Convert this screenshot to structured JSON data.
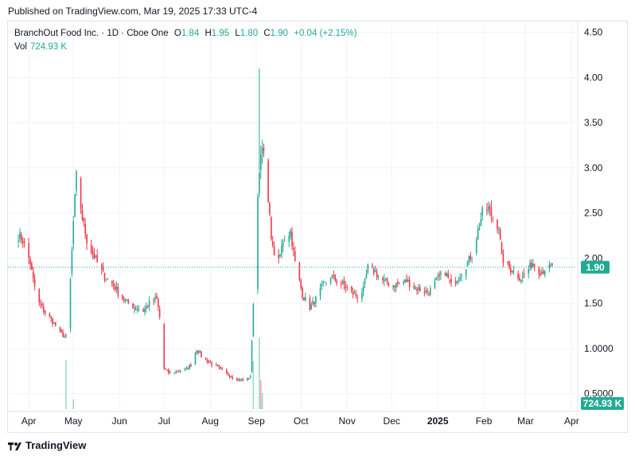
{
  "published_line": "Published on TradingView.com, Mar 19, 2025 17:33 UTC-4",
  "legend": {
    "symbol": "BranchOut Food Inc. · 1D · Cboe One",
    "open_label": "O",
    "open": "1.84",
    "high_label": "H",
    "high": "1.95",
    "low_label": "L",
    "low": "1.80",
    "close_label": "C",
    "close": "1.90",
    "change": "+0.04 (+2.15%)",
    "vol_label": "Vol",
    "vol": "724.93 K"
  },
  "last_price_tag": "1.90",
  "volume_tag": "724.93 K",
  "footer": {
    "brand": "TradingView"
  },
  "colors": {
    "up": "#22ab94",
    "down": "#f23645",
    "grid": "#f0f3fa",
    "text": "#131722",
    "last_line": "#22ab94"
  },
  "chart_data": {
    "type": "candlestick",
    "y_ticks": [
      "4.50",
      "4.00",
      "3.50",
      "3.00",
      "2.50",
      "2.00",
      "1.50",
      "1.0000",
      "0.5000"
    ],
    "y_tick_values": [
      4.5,
      4.0,
      3.5,
      3.0,
      2.5,
      2.0,
      1.5,
      1.0,
      0.5
    ],
    "x_ticks": [
      "Apr",
      "May",
      "Jun",
      "Jul",
      "Aug",
      "Sep",
      "Oct",
      "Nov",
      "Dec",
      "2025",
      "Feb",
      "Mar",
      "Apr"
    ],
    "bold_x_tick": "2025",
    "ylim": [
      0.33,
      4.62
    ],
    "last_price": 1.9,
    "close_path": [
      [
        "2024-03-25",
        2.25
      ],
      [
        "2024-03-28",
        2.2
      ],
      [
        "2024-04-02",
        1.95
      ],
      [
        "2024-04-04",
        1.75
      ],
      [
        "2024-04-08",
        1.5
      ],
      [
        "2024-04-12",
        1.4
      ],
      [
        "2024-04-17",
        1.3
      ],
      [
        "2024-04-22",
        1.18
      ],
      [
        "2024-04-26",
        1.12
      ],
      [
        "2024-04-29",
        1.75
      ],
      [
        "2024-05-01",
        2.4
      ],
      [
        "2024-05-03",
        2.9
      ],
      [
        "2024-05-07",
        2.45
      ],
      [
        "2024-05-10",
        2.2
      ],
      [
        "2024-05-14",
        2.05
      ],
      [
        "2024-05-17",
        1.95
      ],
      [
        "2024-05-22",
        1.8
      ],
      [
        "2024-05-28",
        1.7
      ],
      [
        "2024-06-03",
        1.55
      ],
      [
        "2024-06-07",
        1.5
      ],
      [
        "2024-06-12",
        1.45
      ],
      [
        "2024-06-17",
        1.42
      ],
      [
        "2024-06-21",
        1.5
      ],
      [
        "2024-06-26",
        1.55
      ],
      [
        "2024-06-28",
        1.35
      ],
      [
        "2024-07-01",
        0.78
      ],
      [
        "2024-07-05",
        0.72
      ],
      [
        "2024-07-10",
        0.75
      ],
      [
        "2024-07-15",
        0.76
      ],
      [
        "2024-07-19",
        0.82
      ],
      [
        "2024-07-23",
        1.0
      ],
      [
        "2024-07-26",
        0.92
      ],
      [
        "2024-07-31",
        0.85
      ],
      [
        "2024-08-05",
        0.8
      ],
      [
        "2024-08-09",
        0.75
      ],
      [
        "2024-08-14",
        0.7
      ],
      [
        "2024-08-19",
        0.66
      ],
      [
        "2024-08-23",
        0.65
      ],
      [
        "2024-08-28",
        0.68
      ],
      [
        "2024-08-30",
        1.5
      ],
      [
        "2024-09-03",
        3.0
      ],
      [
        "2024-09-05",
        3.3
      ],
      [
        "2024-09-09",
        2.6
      ],
      [
        "2024-09-12",
        2.1
      ],
      [
        "2024-09-16",
        1.95
      ],
      [
        "2024-09-19",
        2.2
      ],
      [
        "2024-09-24",
        2.3
      ],
      [
        "2024-09-27",
        1.95
      ],
      [
        "2024-10-02",
        1.6
      ],
      [
        "2024-10-07",
        1.45
      ],
      [
        "2024-10-11",
        1.55
      ],
      [
        "2024-10-16",
        1.7
      ],
      [
        "2024-10-21",
        1.8
      ],
      [
        "2024-10-25",
        1.75
      ],
      [
        "2024-10-30",
        1.7
      ],
      [
        "2024-11-04",
        1.62
      ],
      [
        "2024-11-08",
        1.58
      ],
      [
        "2024-11-12",
        1.65
      ],
      [
        "2024-11-15",
        1.9
      ],
      [
        "2024-11-20",
        1.85
      ],
      [
        "2024-11-25",
        1.75
      ],
      [
        "2024-12-02",
        1.7
      ],
      [
        "2024-12-06",
        1.72
      ],
      [
        "2024-12-11",
        1.75
      ],
      [
        "2024-12-16",
        1.68
      ],
      [
        "2024-12-20",
        1.65
      ],
      [
        "2024-12-26",
        1.62
      ],
      [
        "2024-12-31",
        1.75
      ],
      [
        "2025-01-06",
        1.85
      ],
      [
        "2025-01-10",
        1.7
      ],
      [
        "2025-01-15",
        1.8
      ],
      [
        "2025-01-21",
        1.95
      ],
      [
        "2025-01-24",
        2.05
      ],
      [
        "2025-01-28",
        2.3
      ],
      [
        "2025-01-31",
        2.5
      ],
      [
        "2025-02-04",
        2.55
      ],
      [
        "2025-02-07",
        2.45
      ],
      [
        "2025-02-11",
        2.35
      ],
      [
        "2025-02-13",
        2.0
      ],
      [
        "2025-02-18",
        1.9
      ],
      [
        "2025-02-21",
        1.85
      ],
      [
        "2025-02-26",
        1.78
      ],
      [
        "2025-03-03",
        1.88
      ],
      [
        "2025-03-06",
        1.95
      ],
      [
        "2025-03-11",
        1.85
      ],
      [
        "2025-03-14",
        1.88
      ],
      [
        "2025-03-19",
        1.9
      ]
    ]
  }
}
